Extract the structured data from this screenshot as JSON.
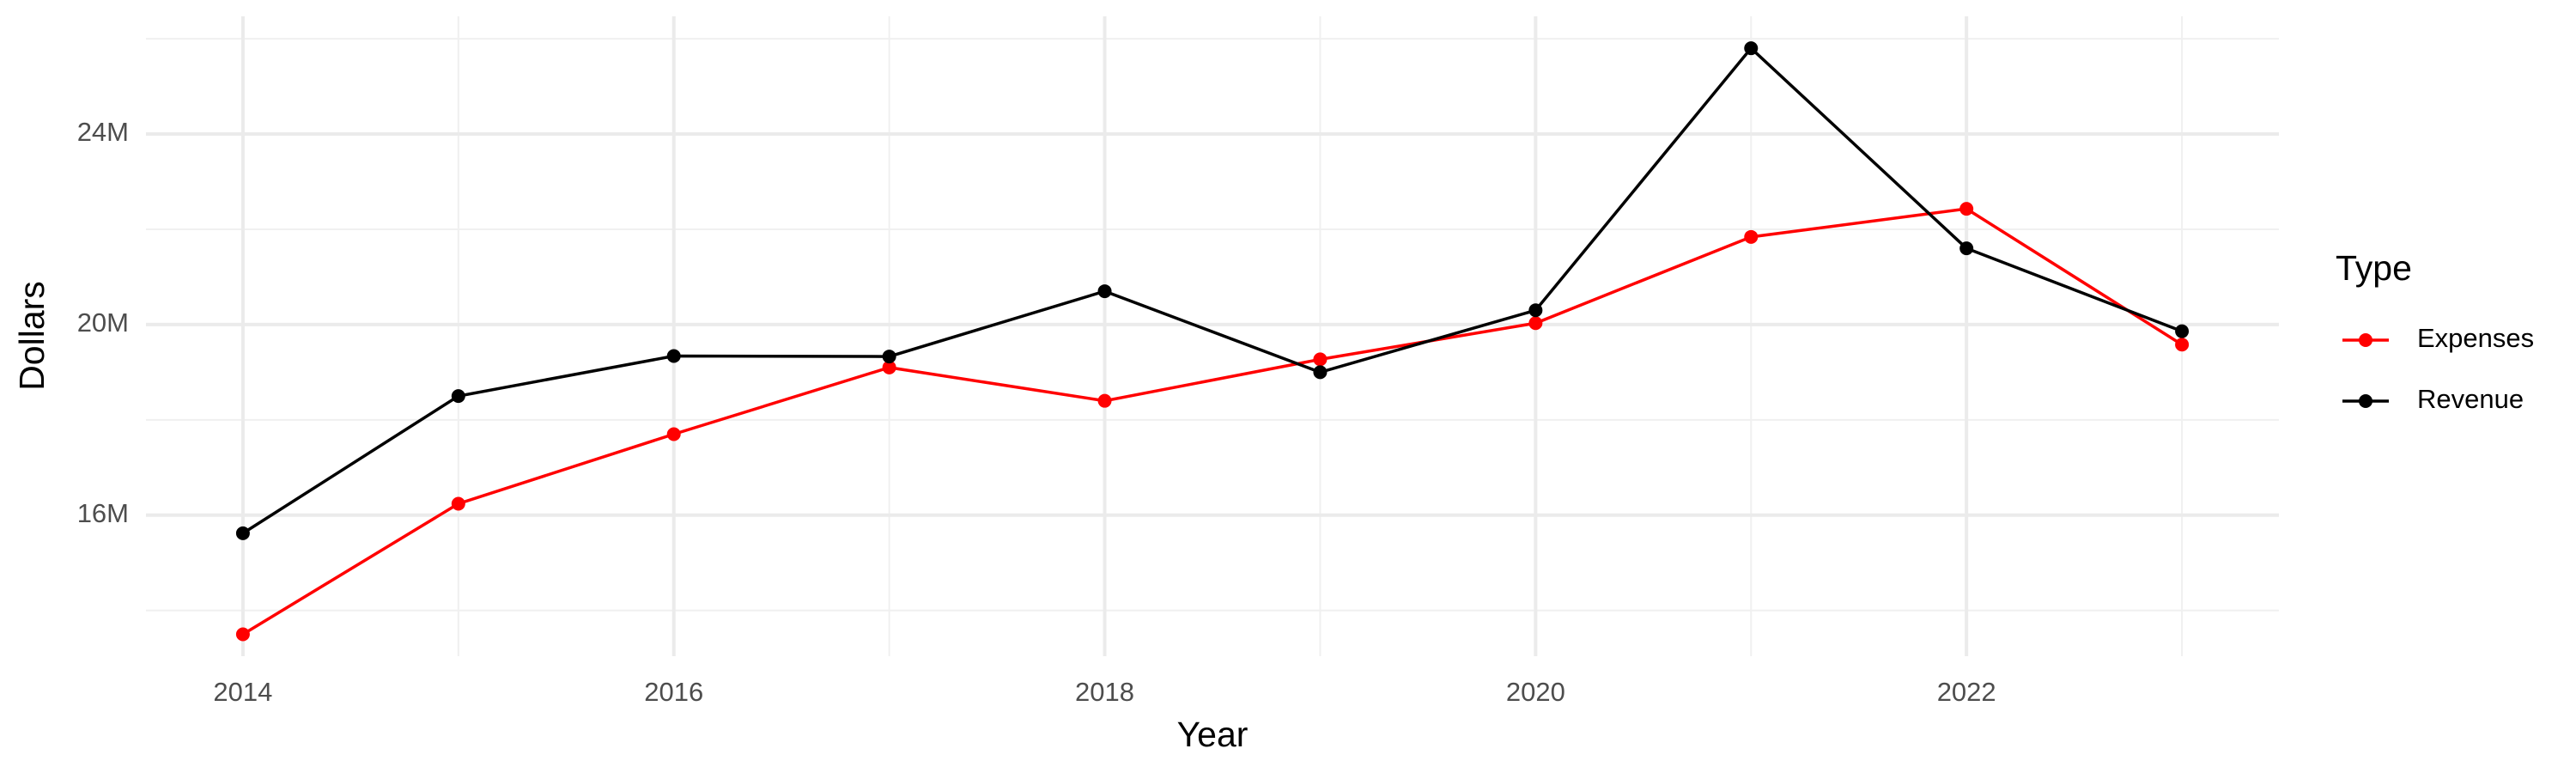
{
  "chart_data": {
    "type": "line",
    "x_label": "Year",
    "y_label": "Dollars",
    "legend_title": "Type",
    "x": [
      2014,
      2015,
      2016,
      2017,
      2018,
      2019,
      2020,
      2021,
      2022,
      2023
    ],
    "series": [
      {
        "name": "Expenses",
        "color": "#ff0000",
        "values": [
          13500000,
          16240000,
          17700000,
          19100000,
          18400000,
          19270000,
          20030000,
          21840000,
          22430000,
          19580000
        ]
      },
      {
        "name": "Revenue",
        "color": "#000000",
        "values": [
          15620000,
          18500000,
          19340000,
          19330000,
          20700000,
          19000000,
          20300000,
          25800000,
          21600000,
          19860000
        ]
      }
    ],
    "xlim": [
      2013.55,
      2023.45
    ],
    "xticks": [
      2014,
      2016,
      2018,
      2020,
      2022
    ],
    "ylim": [
      13040000,
      26470000
    ],
    "yticks": [
      {
        "value": 16000000,
        "label": "16M"
      },
      {
        "value": 20000000,
        "label": "20M"
      },
      {
        "value": 24000000,
        "label": "24M"
      }
    ],
    "grid": true,
    "legend": "right"
  }
}
